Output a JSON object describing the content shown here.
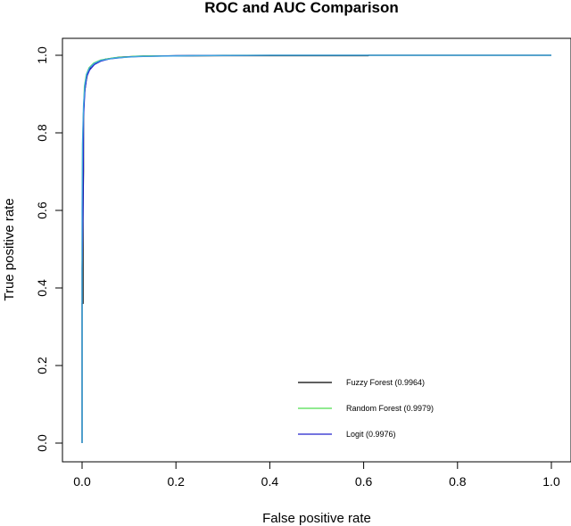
{
  "chart_data": {
    "type": "line",
    "title": "ROC and AUC Comparison",
    "xlabel": "False positive rate",
    "ylabel": "True positive rate",
    "xlim": [
      0,
      1
    ],
    "ylim": [
      0,
      1
    ],
    "xticks": [
      "0.0",
      "0.2",
      "0.4",
      "0.6",
      "0.8",
      "1.0"
    ],
    "yticks": [
      "0.0",
      "0.2",
      "0.4",
      "0.6",
      "0.8",
      "1.0"
    ],
    "grid": false,
    "legend_position": "bottom-right",
    "series": [
      {
        "name": "Fuzzy Forest (0.9964)",
        "color": "#000000",
        "points": [
          [
            0,
            0
          ],
          [
            0,
            0.36
          ],
          [
            0.002,
            0.36
          ],
          [
            0.002,
            0.6
          ],
          [
            0.003,
            0.7
          ],
          [
            0.003,
            0.85
          ],
          [
            0.005,
            0.9
          ],
          [
            0.008,
            0.93
          ],
          [
            0.012,
            0.955
          ],
          [
            0.018,
            0.97
          ],
          [
            0.025,
            0.978
          ],
          [
            0.035,
            0.984
          ],
          [
            0.05,
            0.99
          ],
          [
            0.08,
            0.995
          ],
          [
            0.13,
            0.998
          ],
          [
            0.3,
            0.999
          ],
          [
            0.61,
            0.999
          ],
          [
            0.61,
            1.0
          ],
          [
            1.0,
            1.0
          ]
        ]
      },
      {
        "name": "Random Forest (0.9979)",
        "color": "#4ddd4d",
        "points": [
          [
            0,
            0
          ],
          [
            0,
            0.5
          ],
          [
            0.001,
            0.77
          ],
          [
            0.003,
            0.85
          ],
          [
            0.005,
            0.92
          ],
          [
            0.009,
            0.95
          ],
          [
            0.015,
            0.968
          ],
          [
            0.025,
            0.98
          ],
          [
            0.04,
            0.988
          ],
          [
            0.07,
            0.994
          ],
          [
            0.12,
            0.998
          ],
          [
            0.3,
            1.0
          ],
          [
            1.0,
            1.0
          ]
        ]
      },
      {
        "name": "Logit (0.9976)",
        "color": "#2222cc",
        "points": [
          [
            0,
            0
          ],
          [
            0,
            0.45
          ],
          [
            0.002,
            0.6
          ],
          [
            0.003,
            0.84
          ],
          [
            0.006,
            0.91
          ],
          [
            0.01,
            0.945
          ],
          [
            0.016,
            0.962
          ],
          [
            0.026,
            0.976
          ],
          [
            0.04,
            0.985
          ],
          [
            0.06,
            0.991
          ],
          [
            0.1,
            0.996
          ],
          [
            0.2,
            0.999
          ],
          [
            0.4,
            1.0
          ],
          [
            1.0,
            1.0
          ]
        ]
      },
      {
        "name": "",
        "color": "#3fa7e0",
        "points": [
          [
            0,
            0
          ],
          [
            0,
            0.6
          ],
          [
            0.001,
            0.78
          ],
          [
            0.003,
            0.87
          ],
          [
            0.006,
            0.925
          ],
          [
            0.01,
            0.952
          ],
          [
            0.016,
            0.968
          ],
          [
            0.026,
            0.979
          ],
          [
            0.04,
            0.987
          ],
          [
            0.07,
            0.993
          ],
          [
            0.12,
            0.997
          ],
          [
            0.25,
            0.999
          ],
          [
            0.4,
            1.0
          ],
          [
            1.0,
            1.0
          ]
        ]
      }
    ],
    "legend": [
      {
        "label": "Fuzzy Forest (0.9964)",
        "color": "#000000"
      },
      {
        "label": "Random Forest (0.9979)",
        "color": "#4ddd4d"
      },
      {
        "label": "Logit (0.9976)",
        "color": "#2222cc"
      }
    ]
  }
}
